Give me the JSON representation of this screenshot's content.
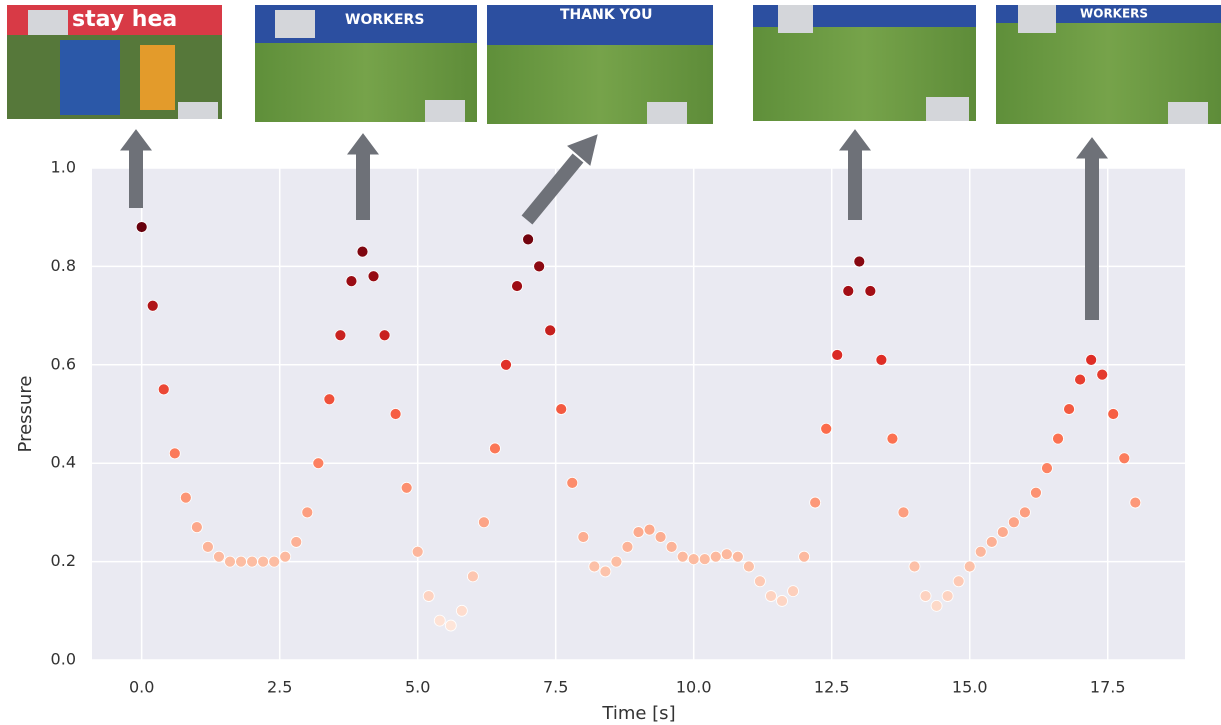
{
  "chart_data": {
    "type": "scatter",
    "xlabel": "Time [s]",
    "ylabel": "Pressure",
    "xlim": [
      -0.9,
      18.9
    ],
    "ylim": [
      0,
      1
    ],
    "xticks": [
      {
        "value": 0,
        "label": "0.0"
      },
      2.5,
      {
        "value": 5,
        "label": "5.0"
      },
      7.5,
      {
        "value": 10,
        "label": "10.0"
      },
      12.5,
      {
        "value": 15,
        "label": "15.0"
      },
      17.5
    ],
    "yticks": [
      {
        "value": 0,
        "label": "0.0"
      },
      0.2,
      0.4,
      0.6,
      0.8,
      {
        "value": 1,
        "label": "1.0"
      }
    ],
    "grid": true,
    "colormap": [
      "#fee5d9",
      "#fcbba1",
      "#fc9272",
      "#fb6a4a",
      "#de2d26",
      "#a50f15",
      "#67000d"
    ],
    "x": [
      0,
      0.2,
      0.4,
      0.6,
      0.8,
      1,
      1.2,
      1.4,
      1.6,
      1.8,
      2,
      2.2,
      2.4,
      2.6,
      2.8,
      3,
      3.2,
      3.4,
      3.6,
      3.8,
      4,
      4.2,
      4.4,
      4.6,
      4.8,
      5,
      5.2,
      5.4,
      5.6,
      5.8,
      6,
      6.2,
      6.4,
      6.6,
      6.8,
      7,
      7.2,
      7.4,
      7.6,
      7.8,
      8,
      8.2,
      8.4,
      8.6,
      8.8,
      9,
      9.2,
      9.4,
      9.6,
      9.8,
      10,
      10.2,
      10.4,
      10.6,
      10.8,
      11,
      11.2,
      11.4,
      11.6,
      11.8,
      12,
      12.2,
      12.4,
      12.6,
      12.8,
      13,
      13.2,
      13.4,
      13.6,
      13.8,
      14,
      14.2,
      14.4,
      14.6,
      14.8,
      15,
      15.2,
      15.4,
      15.6,
      15.8,
      16,
      16.2,
      16.4,
      16.6,
      16.8,
      17,
      17.2,
      17.4,
      17.6,
      17.8,
      18
    ],
    "values": [
      0.88,
      0.72,
      0.55,
      0.42,
      0.33,
      0.27,
      0.23,
      0.21,
      0.2,
      0.2,
      0.2,
      0.2,
      0.2,
      0.21,
      0.24,
      0.3,
      0.4,
      0.53,
      0.66,
      0.77,
      0.83,
      0.78,
      0.66,
      0.5,
      0.35,
      0.22,
      0.13,
      0.08,
      0.07,
      0.1,
      0.17,
      0.28,
      0.43,
      0.6,
      0.76,
      0.855,
      0.8,
      0.67,
      0.51,
      0.36,
      0.25,
      0.19,
      0.18,
      0.2,
      0.23,
      0.26,
      0.265,
      0.25,
      0.23,
      0.21,
      0.205,
      0.205,
      0.21,
      0.215,
      0.21,
      0.19,
      0.16,
      0.13,
      0.12,
      0.14,
      0.21,
      0.32,
      0.47,
      0.62,
      0.75,
      0.81,
      0.75,
      0.61,
      0.45,
      0.3,
      0.19,
      0.13,
      0.11,
      0.13,
      0.16,
      0.19,
      0.22,
      0.24,
      0.26,
      0.28,
      0.3,
      0.34,
      0.39,
      0.45,
      0.51,
      0.57,
      0.61,
      0.58,
      0.5,
      0.41,
      0.32
    ]
  },
  "thumbnail_texts": [
    "stay hea",
    "WORKERS",
    "THANK YOU",
    "WORKERS"
  ]
}
